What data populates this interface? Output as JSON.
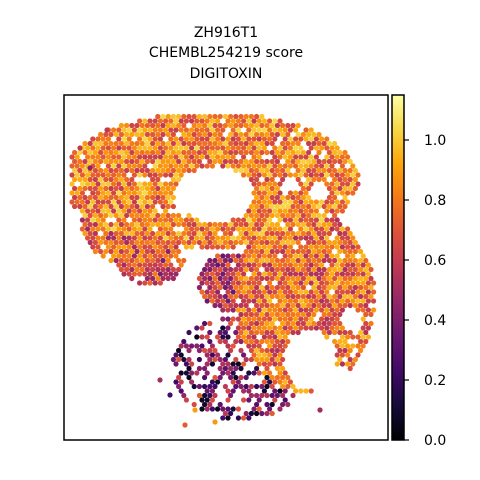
{
  "chart_data": {
    "type": "scatter",
    "title_lines": [
      "ZH916T1",
      "CHEMBL254219 score",
      "DIGITOXIN"
    ],
    "xlabel": "",
    "ylabel": "",
    "grid": false,
    "legend": "none",
    "colorbar": {
      "colormap": "inferno",
      "range": [
        0.0,
        1.15
      ],
      "ticks": [
        0.0,
        0.2,
        0.4,
        0.6,
        0.8,
        1.0
      ],
      "tick_labels": [
        "0.0",
        "0.2",
        "0.4",
        "0.6",
        "0.8",
        "1.0"
      ]
    },
    "description_regions": [
      {
        "region": "upper arc",
        "typical_score": 0.8
      },
      {
        "region": "right lobe",
        "typical_score": 0.75
      },
      {
        "region": "left lobe",
        "typical_score": 0.7
      },
      {
        "region": "lower-center cluster",
        "typical_score": 0.35
      }
    ]
  }
}
